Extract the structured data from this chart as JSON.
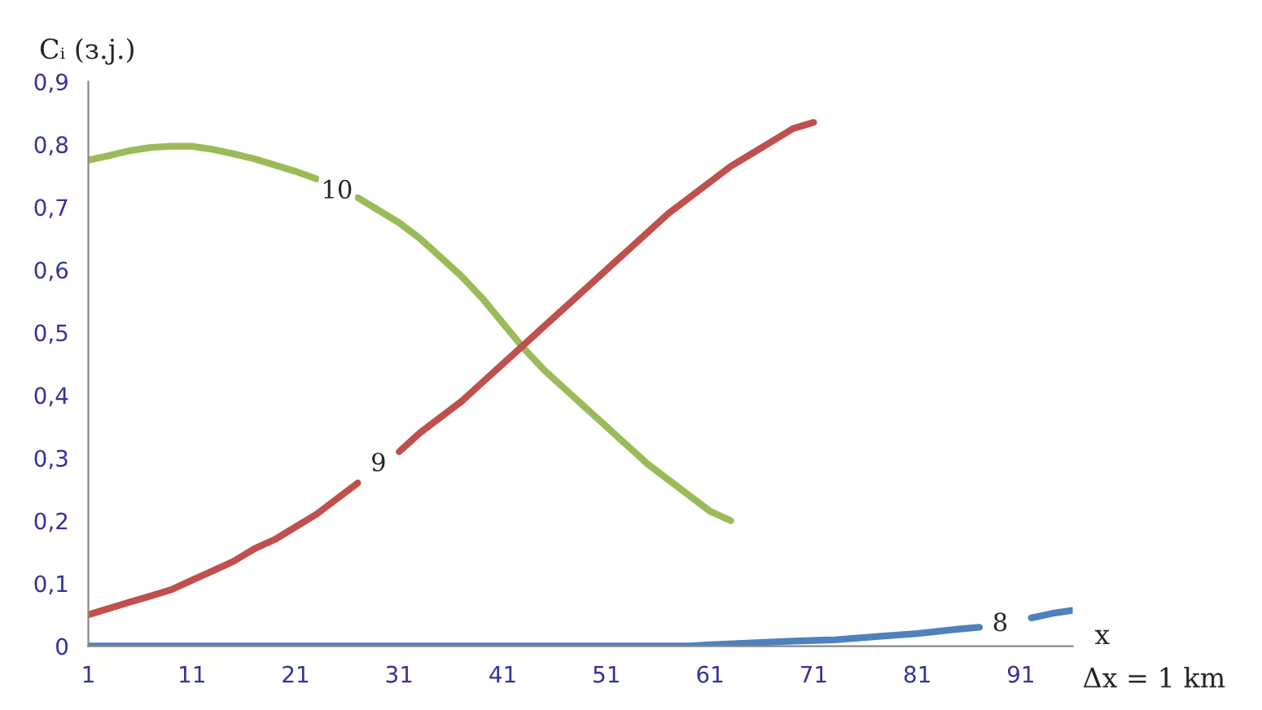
{
  "chart_data": {
    "type": "line",
    "ylabel": "Cᵢ (з.ј.)",
    "xlabel": "x",
    "xlim": [
      1,
      96
    ],
    "xticks": [
      1,
      11,
      21,
      31,
      41,
      51,
      61,
      71,
      81,
      91
    ],
    "ylim": [
      0,
      0.9
    ],
    "yticks": [
      0,
      {
        "value": 0.1,
        "label": "0,1"
      },
      {
        "value": 0.2,
        "label": "0,2"
      },
      {
        "value": 0.3,
        "label": "0,3"
      },
      {
        "value": 0.4,
        "label": "0,4"
      },
      {
        "value": 0.5,
        "label": "0,5"
      },
      {
        "value": 0.6,
        "label": "0,6"
      },
      {
        "value": 0.7,
        "label": "0,7"
      },
      {
        "value": 0.8,
        "label": "0,8"
      },
      {
        "value": 0.9,
        "label": "0,9"
      }
    ],
    "grid": false,
    "legend": false,
    "marker": "none",
    "line_style": "solid",
    "series": [
      {
        "color": "#9bbb59",
        "x": [
          1,
          3,
          5,
          7,
          9,
          11,
          13,
          15,
          17,
          19,
          21,
          23,
          25,
          27,
          29,
          31,
          33,
          35,
          37,
          39,
          41,
          43,
          45,
          47,
          49,
          51,
          53,
          55,
          57,
          59,
          61,
          63
        ],
        "values": [
          0.775,
          0.782,
          0.79,
          0.795,
          0.797,
          0.797,
          0.792,
          0.785,
          0.777,
          0.767,
          0.757,
          0.745,
          null,
          0.715,
          0.695,
          0.675,
          0.65,
          0.62,
          0.59,
          0.555,
          0.515,
          0.475,
          0.44,
          0.41,
          0.38,
          0.35,
          0.32,
          0.29,
          0.265,
          0.24,
          0.215,
          0.2
        ]
      },
      {
        "color": "#c0504d",
        "x": [
          1,
          3,
          5,
          7,
          9,
          11,
          13,
          15,
          17,
          19,
          21,
          23,
          25,
          27,
          29,
          31,
          33,
          35,
          37,
          39,
          41,
          43,
          45,
          47,
          49,
          51,
          53,
          55,
          57,
          59,
          61,
          63,
          65,
          67,
          69,
          71
        ],
        "values": [
          0.05,
          0.06,
          0.07,
          0.08,
          0.09,
          0.105,
          0.12,
          0.135,
          0.155,
          0.17,
          0.19,
          0.21,
          0.235,
          0.26,
          null,
          0.31,
          0.34,
          0.365,
          0.39,
          0.42,
          0.45,
          0.48,
          0.51,
          0.54,
          0.57,
          0.6,
          0.63,
          0.66,
          0.69,
          0.715,
          0.74,
          0.765,
          0.785,
          0.805,
          0.825,
          0.835
        ]
      },
      {
        "color": "#4f81bd",
        "x": [
          1,
          59,
          61,
          65,
          69,
          73,
          77,
          81,
          85,
          87,
          89,
          92,
          94,
          96
        ],
        "values": [
          0,
          0,
          0.002,
          0.005,
          0.008,
          0.01,
          0.015,
          0.02,
          0.027,
          0.03,
          null,
          0.045,
          0.052,
          0.057
        ]
      }
    ],
    "annotations": [
      {
        "text": "10",
        "x": 25,
        "y": 0.725
      },
      {
        "text": "9",
        "x": 29,
        "y": 0.29
      },
      {
        "text": "8",
        "x": 89,
        "y": 0.035
      },
      "Δx = 1 km"
    ]
  }
}
